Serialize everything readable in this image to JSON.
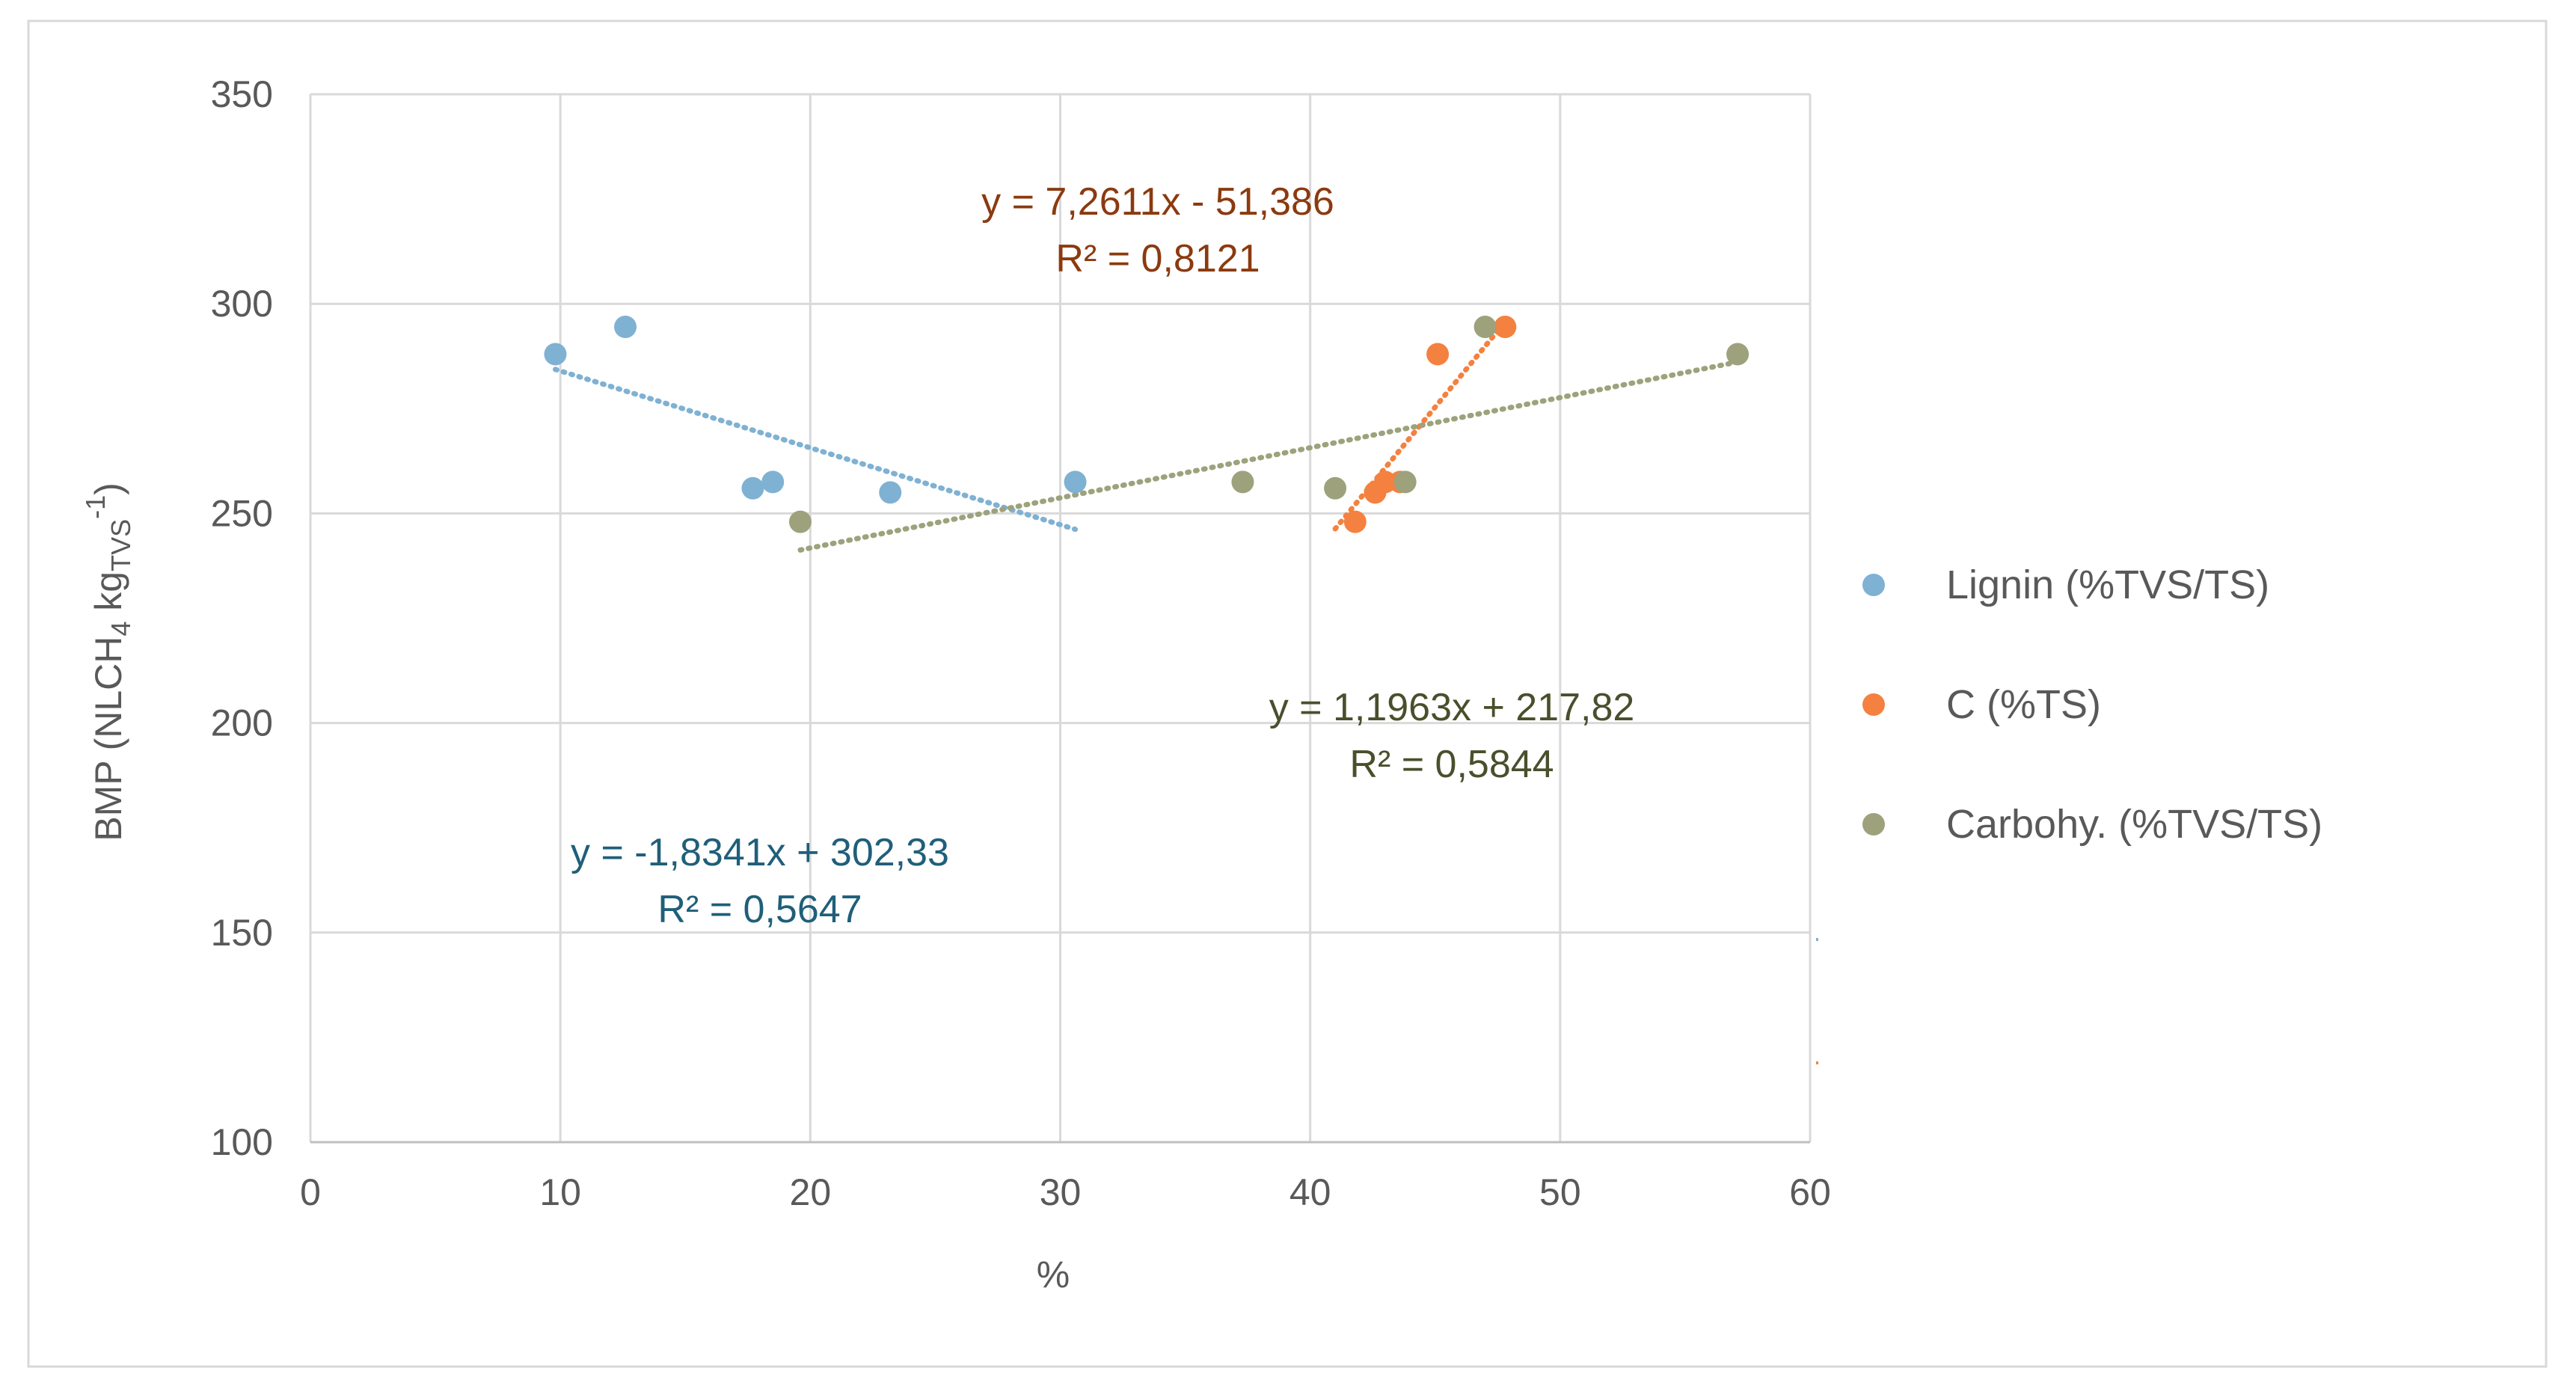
{
  "chart_data": {
    "type": "scatter",
    "title": "",
    "xlabel": "%",
    "ylabel": {
      "prefix": "BMP (NLCH",
      "sub1": "4",
      "mid": " kg",
      "sub2": "TVS",
      "sup": "-1",
      "suffix": ")"
    },
    "xlim": [
      0,
      60
    ],
    "ylim": [
      100,
      350
    ],
    "x_ticks": [
      0,
      10,
      20,
      30,
      40,
      50,
      60
    ],
    "y_ticks": [
      100,
      150,
      200,
      250,
      300,
      350
    ],
    "grid": true,
    "legend_position": "right",
    "series": [
      {
        "name": "Lignin (%TVS/TS)",
        "color": "#7FB1D3",
        "label_color": "#1F5F7A",
        "x": [
          9.8,
          12.6,
          17.7,
          18.5,
          23.2,
          30.6
        ],
        "y": [
          288,
          294.5,
          256,
          257.5,
          255,
          257.5
        ],
        "trendline": {
          "slope": -1.8341,
          "intercept": 302.33,
          "x_range": [
            9.8,
            30.6
          ],
          "equation": "y = -1,8341x + 302,33",
          "r2": "R² = 0,5647"
        }
      },
      {
        "name": "C (%TS)",
        "color": "#F4813F",
        "label_color": "#8B3A0F",
        "x": [
          41.8,
          42.6,
          43.0,
          43.6,
          45.1,
          47.8
        ],
        "y": [
          248,
          255,
          257.5,
          257.5,
          288,
          294.5
        ],
        "trendline": {
          "slope": 7.2611,
          "intercept": -51.386,
          "x_range": [
            41.0,
            47.8
          ],
          "equation": "y = 7,2611x - 51,386",
          "r2": "R² = 0,8121"
        }
      },
      {
        "name": "Carbohy. (%TVS/TS)",
        "color": "#9DA27C",
        "label_color": "#4A4F2C",
        "x": [
          19.6,
          37.3,
          41.0,
          43.8,
          47.0,
          57.1
        ],
        "y": [
          248,
          257.5,
          256,
          257.5,
          294.5,
          288
        ],
        "trendline": {
          "slope": 1.1963,
          "intercept": 217.82,
          "x_range": [
            19.6,
            57.1
          ],
          "equation": "y = 1,1963x + 217,82",
          "r2": "R² = 0,5844"
        }
      }
    ]
  }
}
